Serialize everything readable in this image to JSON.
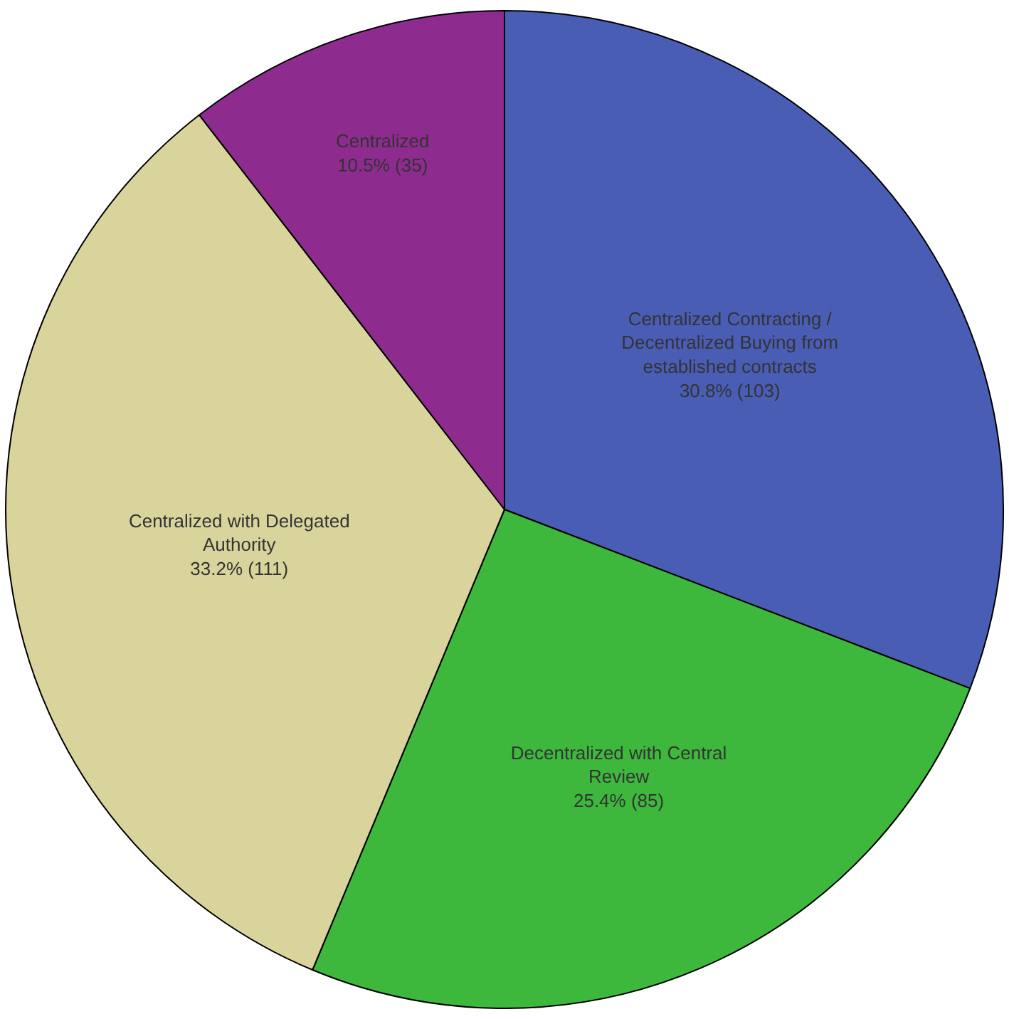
{
  "chart_data": {
    "type": "pie",
    "categories": [
      "Centralized Contracting / Decentralized Buying from established contracts",
      "Decentralized with Central Review",
      "Centralized with Delegated Authority",
      "Centralized"
    ],
    "values": [
      103,
      85,
      111,
      35
    ],
    "value_labels": [
      "30.8% (103)",
      "25.4% (85)",
      "33.2% (111)",
      "10.5% (35)"
    ],
    "colors": [
      "#4a5db5",
      "#3db83d",
      "#d9d49c",
      "#8e2b8e"
    ],
    "legend": false
  }
}
